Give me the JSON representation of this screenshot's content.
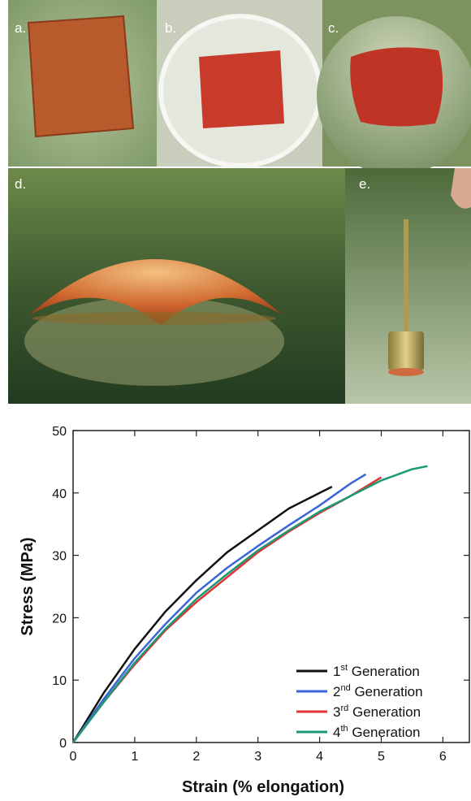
{
  "panels": [
    {
      "label": "a."
    },
    {
      "label": "b."
    },
    {
      "label": "c."
    },
    {
      "label": "d."
    },
    {
      "label": "e."
    }
  ],
  "chart_data": {
    "type": "line",
    "x_label": "Strain (% elongation)",
    "y_label": "Stress (MPa)",
    "xlim": [
      0,
      6.43
    ],
    "ylim": [
      0,
      50
    ],
    "xticks": [
      0,
      1,
      2,
      3,
      4,
      5,
      6
    ],
    "yticks": [
      0,
      10,
      20,
      30,
      40,
      50
    ],
    "legend": "lower right",
    "series": [
      {
        "name": "1st Generation",
        "color": "#111111",
        "x": [
          0,
          0.5,
          1,
          1.5,
          2,
          2.5,
          3,
          3.5,
          4,
          4.2
        ],
        "values": [
          0,
          8,
          15,
          21,
          26,
          30.5,
          34,
          37.5,
          40,
          41
        ]
      },
      {
        "name": "2nd Generation",
        "color": "#3a64d8",
        "x": [
          0,
          0.5,
          1,
          1.5,
          2,
          2.5,
          3,
          3.5,
          4,
          4.5,
          4.75
        ],
        "values": [
          0,
          7,
          13.5,
          19,
          24,
          28,
          31.5,
          34.8,
          38,
          41.5,
          43
        ]
      },
      {
        "name": "3rd Generation",
        "color": "#e03434",
        "x": [
          0,
          0.5,
          1,
          1.5,
          2,
          2.5,
          3,
          3.5,
          4,
          4.5,
          5
        ],
        "values": [
          0,
          6.5,
          12.5,
          18,
          22.5,
          26.5,
          30.5,
          33.8,
          36.8,
          39.5,
          42.5
        ]
      },
      {
        "name": "4th Generation",
        "color": "#1a9a74",
        "x": [
          0,
          0.5,
          1,
          1.5,
          2,
          2.5,
          3,
          3.5,
          4,
          4.5,
          5,
          5.5,
          5.75
        ],
        "values": [
          0,
          6.5,
          12.8,
          18.2,
          23,
          27,
          30.8,
          34,
          37,
          39.5,
          42,
          43.8,
          44.3
        ]
      }
    ]
  }
}
